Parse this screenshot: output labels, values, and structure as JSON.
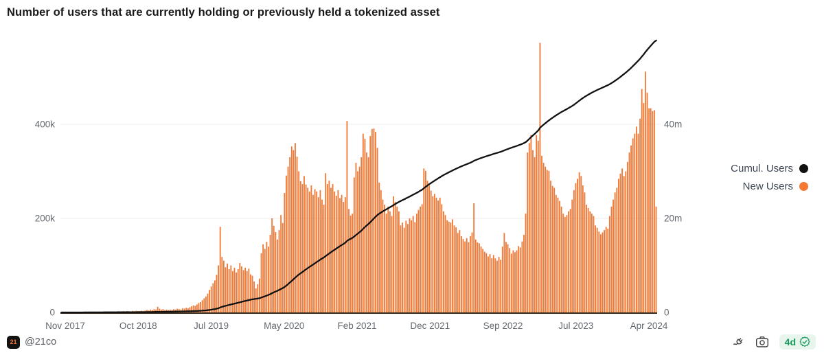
{
  "header": {
    "title": "Number of users that are currently holding or previously held a tokenized asset"
  },
  "legend": {
    "items": [
      {
        "label": "Cumul. Users",
        "color": "#111111"
      },
      {
        "label": "New Users",
        "color": "#F57932"
      }
    ]
  },
  "footer": {
    "badge_text": "21",
    "handle": "@21co",
    "age_label": "4d"
  },
  "colors": {
    "bars": "#EF7A38",
    "line": "#111111",
    "grid": "#ededed",
    "axis_line": "#3a2a1c",
    "tick_text": "#62696f",
    "pill_green": "#169a5c",
    "icon_gray": "#3f3f3f"
  },
  "chart_data": {
    "type": "bar+line",
    "title": "Number of users that are currently holding or previously held a tokenized asset",
    "frequency": "weekly",
    "x_start": "2017-11",
    "x_end": "2024-04",
    "x_ticks": [
      "Nov 2017",
      "Oct 2018",
      "Jul 2019",
      "May 2020",
      "Feb 2021",
      "Dec 2021",
      "Sep 2022",
      "Jul 2023",
      "Apr 2024"
    ],
    "left_axis": {
      "series": "New Users",
      "unit": "thousands_of_users",
      "ticks": [
        {
          "v": 0,
          "label": "0"
        },
        {
          "v": 200,
          "label": "200k"
        },
        {
          "v": 400,
          "label": "400k"
        }
      ]
    },
    "right_axis": {
      "series": "Cumul. Users",
      "unit": "millions_of_users",
      "ticks": [
        {
          "v": 0,
          "label": "0"
        },
        {
          "v": 20,
          "label": "20m"
        },
        {
          "v": 40,
          "label": "40m"
        }
      ]
    },
    "grid": "horizontal-faint",
    "legend_position": "right",
    "cumulative_is_running_sum_of_new_users": true,
    "cumulative_end_millions_approx": 58,
    "notable_points": [
      {
        "date": "2019-07",
        "new_users": 182000,
        "note": "first spike"
      },
      {
        "date": "2020-12",
        "new_users": 407000
      },
      {
        "date": "2021-03",
        "new_users": 391000
      },
      {
        "date": "2023-01",
        "new_users": 573000,
        "note": "tallest bar"
      },
      {
        "date": "2024-02",
        "new_users": 512000
      }
    ],
    "new_users_thousands": [
      0.2,
      0.3,
      0.2,
      0.4,
      0.3,
      0.5,
      0.4,
      0.3,
      0.5,
      1,
      0.8,
      1.2,
      1,
      1.5,
      1.2,
      0.9,
      1.4,
      1.1,
      1.6,
      1.3,
      1,
      1.8,
      1.5,
      1.2,
      2,
      1.6,
      1.4,
      1.9,
      1.5,
      2.2,
      1.8,
      1.5,
      2.5,
      2,
      1.8,
      2.6,
      2.2,
      3,
      2.4,
      2,
      3.2,
      2.6,
      3.5,
      2.8,
      3,
      3.6,
      3,
      4,
      5,
      4,
      6,
      5,
      7,
      6,
      12,
      8,
      6,
      7,
      5,
      6,
      5,
      6,
      5,
      7,
      6,
      8,
      7,
      6,
      9,
      8,
      10,
      9,
      11,
      13,
      15,
      14,
      17,
      20,
      22,
      26,
      30,
      34,
      40,
      48,
      55,
      62,
      68,
      80,
      100,
      182,
      118,
      110,
      96,
      104,
      92,
      100,
      88,
      95,
      85,
      92,
      105,
      98,
      90,
      95,
      88,
      93,
      81,
      78,
      66,
      51,
      60,
      72,
      126,
      145,
      135,
      150,
      140,
      165,
      200,
      184,
      171,
      155,
      175,
      207,
      190,
      254,
      291,
      310,
      330,
      353,
      345,
      360,
      331,
      300,
      279,
      273,
      290,
      272,
      265,
      257,
      270,
      250,
      262,
      257,
      245,
      260,
      240,
      229,
      296,
      273,
      280,
      265,
      273,
      257,
      248,
      260,
      243,
      250,
      235,
      245,
      407,
      220,
      206,
      210,
      287,
      318,
      300,
      310,
      330,
      380,
      369,
      340,
      330,
      375,
      390,
      391,
      384,
      350,
      276,
      260,
      240,
      229,
      210,
      225,
      215,
      205,
      247,
      235,
      225,
      215,
      185,
      191,
      180,
      195,
      188,
      200,
      196,
      205,
      192,
      210,
      218,
      225,
      230,
      306,
      301,
      280,
      270,
      259,
      247,
      252,
      244,
      238,
      244,
      230,
      215,
      207,
      196,
      193,
      191,
      198,
      185,
      181,
      169,
      175,
      162,
      156,
      151,
      158,
      149,
      162,
      170,
      232,
      155,
      149,
      147,
      140,
      135,
      129,
      126,
      119,
      124,
      115,
      122,
      115,
      110,
      118,
      112,
      140,
      169,
      150,
      145,
      137,
      125,
      132,
      128,
      132,
      141,
      138,
      151,
      165,
      210,
      340,
      360,
      377,
      345,
      330,
      377,
      365,
      573,
      333,
      318,
      310,
      303,
      301,
      280,
      269,
      265,
      250,
      244,
      237,
      225,
      210,
      203,
      207,
      215,
      220,
      240,
      260,
      275,
      284,
      298,
      290,
      270,
      255,
      229,
      222,
      215,
      210,
      205,
      185,
      180,
      172,
      166,
      170,
      175,
      182,
      178,
      205,
      225,
      240,
      255,
      265,
      284,
      295,
      306,
      290,
      300,
      320,
      340,
      355,
      370,
      380,
      395,
      380,
      412,
      475,
      445,
      512,
      467,
      434,
      434,
      428,
      430,
      225
    ]
  }
}
